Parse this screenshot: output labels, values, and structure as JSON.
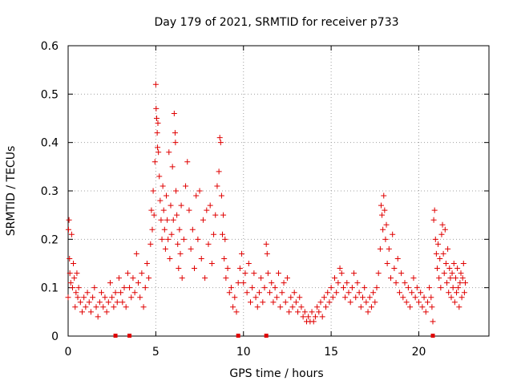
{
  "chart_data": {
    "type": "scatter",
    "title": "Day 179 of 2021, SRMTID for receiver p733",
    "xlabel": "GPS time / hours",
    "ylabel": "SRMTID / TECUs",
    "xlim": [
      0,
      24
    ],
    "ylim": [
      0,
      0.6
    ],
    "x_ticks": [
      0,
      5,
      10,
      15,
      20
    ],
    "y_ticks": [
      0,
      0.1,
      0.2,
      0.3,
      0.4,
      0.5,
      0.6
    ],
    "x_tick_labels": [
      "0",
      "5",
      "10",
      "15",
      "20"
    ],
    "y_tick_labels": [
      "0",
      "0.1",
      "0.2",
      "0.3",
      "0.4",
      "0.5",
      "0.6"
    ],
    "grid": true,
    "marker": "+",
    "color": "#e00000",
    "series": [
      {
        "name": "SRMTID",
        "points": [
          [
            0.0,
            0.08
          ],
          [
            0.02,
            0.22
          ],
          [
            0.05,
            0.24
          ],
          [
            0.08,
            0.16
          ],
          [
            0.1,
            0.13
          ],
          [
            0.15,
            0.11
          ],
          [
            0.2,
            0.21
          ],
          [
            0.25,
            0.1
          ],
          [
            0.3,
            0.15
          ],
          [
            0.35,
            0.12
          ],
          [
            0.4,
            0.06
          ],
          [
            0.45,
            0.09
          ],
          [
            0.5,
            0.13
          ],
          [
            0.55,
            0.08
          ],
          [
            0.6,
            0.1
          ],
          [
            0.7,
            0.07
          ],
          [
            0.8,
            0.05
          ],
          [
            0.9,
            0.08
          ],
          [
            1.0,
            0.06
          ],
          [
            1.1,
            0.09
          ],
          [
            1.2,
            0.07
          ],
          [
            1.3,
            0.05
          ],
          [
            1.4,
            0.08
          ],
          [
            1.5,
            0.1
          ],
          [
            1.6,
            0.06
          ],
          [
            1.7,
            0.04
          ],
          [
            1.8,
            0.07
          ],
          [
            1.9,
            0.09
          ],
          [
            2.0,
            0.06
          ],
          [
            2.1,
            0.08
          ],
          [
            2.2,
            0.05
          ],
          [
            2.3,
            0.07
          ],
          [
            2.4,
            0.11
          ],
          [
            2.5,
            0.08
          ],
          [
            2.6,
            0.06
          ],
          [
            2.7,
            0.09
          ],
          [
            2.8,
            0.07
          ],
          [
            2.9,
            0.12
          ],
          [
            3.0,
            0.09
          ],
          [
            3.1,
            0.07
          ],
          [
            3.2,
            0.1
          ],
          [
            3.3,
            0.06
          ],
          [
            3.4,
            0.13
          ],
          [
            3.5,
            0.1
          ],
          [
            3.6,
            0.08
          ],
          [
            3.7,
            0.12
          ],
          [
            3.8,
            0.09
          ],
          [
            3.9,
            0.17
          ],
          [
            4.0,
            0.11
          ],
          [
            4.1,
            0.08
          ],
          [
            4.2,
            0.13
          ],
          [
            4.3,
            0.06
          ],
          [
            4.4,
            0.1
          ],
          [
            4.5,
            0.15
          ],
          [
            4.6,
            0.12
          ],
          [
            4.7,
            0.19
          ],
          [
            4.75,
            0.26
          ],
          [
            4.8,
            0.22
          ],
          [
            4.85,
            0.3
          ],
          [
            4.9,
            0.25
          ],
          [
            4.95,
            0.36
          ],
          [
            5.0,
            0.52
          ],
          [
            5.02,
            0.47
          ],
          [
            5.05,
            0.45
          ],
          [
            5.08,
            0.42
          ],
          [
            5.1,
            0.39
          ],
          [
            5.12,
            0.44
          ],
          [
            5.15,
            0.38
          ],
          [
            5.2,
            0.33
          ],
          [
            5.25,
            0.28
          ],
          [
            5.3,
            0.24
          ],
          [
            5.35,
            0.2
          ],
          [
            5.4,
            0.31
          ],
          [
            5.45,
            0.26
          ],
          [
            5.5,
            0.22
          ],
          [
            5.55,
            0.18
          ],
          [
            5.6,
            0.29
          ],
          [
            5.65,
            0.24
          ],
          [
            5.7,
            0.2
          ],
          [
            5.75,
            0.38
          ],
          [
            5.8,
            0.16
          ],
          [
            5.85,
            0.27
          ],
          [
            5.9,
            0.21
          ],
          [
            5.95,
            0.35
          ],
          [
            6.0,
            0.24
          ],
          [
            6.05,
            0.46
          ],
          [
            6.1,
            0.42
          ],
          [
            6.12,
            0.4
          ],
          [
            6.15,
            0.3
          ],
          [
            6.2,
            0.25
          ],
          [
            6.25,
            0.19
          ],
          [
            6.3,
            0.14
          ],
          [
            6.35,
            0.22
          ],
          [
            6.4,
            0.17
          ],
          [
            6.45,
            0.27
          ],
          [
            6.5,
            0.12
          ],
          [
            6.6,
            0.2
          ],
          [
            6.7,
            0.31
          ],
          [
            6.8,
            0.36
          ],
          [
            6.9,
            0.26
          ],
          [
            7.0,
            0.18
          ],
          [
            7.1,
            0.22
          ],
          [
            7.2,
            0.14
          ],
          [
            7.3,
            0.29
          ],
          [
            7.4,
            0.2
          ],
          [
            7.5,
            0.3
          ],
          [
            7.6,
            0.16
          ],
          [
            7.7,
            0.24
          ],
          [
            7.8,
            0.12
          ],
          [
            7.9,
            0.26
          ],
          [
            8.0,
            0.19
          ],
          [
            8.1,
            0.27
          ],
          [
            8.2,
            0.15
          ],
          [
            8.3,
            0.21
          ],
          [
            8.4,
            0.25
          ],
          [
            8.5,
            0.31
          ],
          [
            8.6,
            0.34
          ],
          [
            8.65,
            0.41
          ],
          [
            8.7,
            0.4
          ],
          [
            8.75,
            0.29
          ],
          [
            8.8,
            0.21
          ],
          [
            8.85,
            0.25
          ],
          [
            8.9,
            0.16
          ],
          [
            8.95,
            0.2
          ],
          [
            9.0,
            0.12
          ],
          [
            9.1,
            0.14
          ],
          [
            9.2,
            0.09
          ],
          [
            9.3,
            0.1
          ],
          [
            9.4,
            0.06
          ],
          [
            9.5,
            0.08
          ],
          [
            9.6,
            0.05
          ],
          [
            9.7,
            0.11
          ],
          [
            9.8,
            0.14
          ],
          [
            9.9,
            0.17
          ],
          [
            10.0,
            0.11
          ],
          [
            10.1,
            0.13
          ],
          [
            10.2,
            0.09
          ],
          [
            10.3,
            0.15
          ],
          [
            10.4,
            0.07
          ],
          [
            10.5,
            0.1
          ],
          [
            10.6,
            0.13
          ],
          [
            10.7,
            0.08
          ],
          [
            10.8,
            0.06
          ],
          [
            10.9,
            0.09
          ],
          [
            11.0,
            0.12
          ],
          [
            11.1,
            0.07
          ],
          [
            11.2,
            0.1
          ],
          [
            11.3,
            0.19
          ],
          [
            11.35,
            0.17
          ],
          [
            11.4,
            0.13
          ],
          [
            11.5,
            0.09
          ],
          [
            11.6,
            0.11
          ],
          [
            11.7,
            0.07
          ],
          [
            11.8,
            0.1
          ],
          [
            11.9,
            0.08
          ],
          [
            12.0,
            0.13
          ],
          [
            12.1,
            0.06
          ],
          [
            12.2,
            0.09
          ],
          [
            12.3,
            0.11
          ],
          [
            12.4,
            0.07
          ],
          [
            12.5,
            0.12
          ],
          [
            12.6,
            0.05
          ],
          [
            12.7,
            0.08
          ],
          [
            12.8,
            0.06
          ],
          [
            12.9,
            0.09
          ],
          [
            13.0,
            0.07
          ],
          [
            13.1,
            0.05
          ],
          [
            13.2,
            0.08
          ],
          [
            13.3,
            0.06
          ],
          [
            13.4,
            0.04
          ],
          [
            13.5,
            0.05
          ],
          [
            13.6,
            0.03
          ],
          [
            13.7,
            0.04
          ],
          [
            13.8,
            0.03
          ],
          [
            13.9,
            0.05
          ],
          [
            14.0,
            0.03
          ],
          [
            14.1,
            0.04
          ],
          [
            14.2,
            0.06
          ],
          [
            14.3,
            0.05
          ],
          [
            14.4,
            0.07
          ],
          [
            14.5,
            0.04
          ],
          [
            14.6,
            0.08
          ],
          [
            14.7,
            0.06
          ],
          [
            14.8,
            0.09
          ],
          [
            14.9,
            0.07
          ],
          [
            15.0,
            0.1
          ],
          [
            15.1,
            0.08
          ],
          [
            15.2,
            0.12
          ],
          [
            15.3,
            0.09
          ],
          [
            15.4,
            0.11
          ],
          [
            15.5,
            0.14
          ],
          [
            15.6,
            0.13
          ],
          [
            15.7,
            0.1
          ],
          [
            15.8,
            0.08
          ],
          [
            15.9,
            0.11
          ],
          [
            16.0,
            0.09
          ],
          [
            16.1,
            0.07
          ],
          [
            16.2,
            0.1
          ],
          [
            16.3,
            0.13
          ],
          [
            16.4,
            0.08
          ],
          [
            16.5,
            0.11
          ],
          [
            16.6,
            0.09
          ],
          [
            16.7,
            0.06
          ],
          [
            16.8,
            0.08
          ],
          [
            16.9,
            0.1
          ],
          [
            17.0,
            0.07
          ],
          [
            17.1,
            0.05
          ],
          [
            17.2,
            0.08
          ],
          [
            17.3,
            0.06
          ],
          [
            17.4,
            0.09
          ],
          [
            17.5,
            0.07
          ],
          [
            17.6,
            0.1
          ],
          [
            17.7,
            0.13
          ],
          [
            17.8,
            0.18
          ],
          [
            17.85,
            0.27
          ],
          [
            17.9,
            0.25
          ],
          [
            17.95,
            0.22
          ],
          [
            18.0,
            0.29
          ],
          [
            18.05,
            0.26
          ],
          [
            18.1,
            0.2
          ],
          [
            18.15,
            0.23
          ],
          [
            18.2,
            0.15
          ],
          [
            18.3,
            0.18
          ],
          [
            18.4,
            0.12
          ],
          [
            18.5,
            0.21
          ],
          [
            18.6,
            0.14
          ],
          [
            18.7,
            0.11
          ],
          [
            18.8,
            0.16
          ],
          [
            18.9,
            0.09
          ],
          [
            19.0,
            0.13
          ],
          [
            19.1,
            0.08
          ],
          [
            19.2,
            0.11
          ],
          [
            19.3,
            0.07
          ],
          [
            19.4,
            0.1
          ],
          [
            19.5,
            0.06
          ],
          [
            19.6,
            0.09
          ],
          [
            19.7,
            0.12
          ],
          [
            19.8,
            0.08
          ],
          [
            19.9,
            0.1
          ],
          [
            20.0,
            0.07
          ],
          [
            20.1,
            0.09
          ],
          [
            20.2,
            0.06
          ],
          [
            20.3,
            0.08
          ],
          [
            20.4,
            0.05
          ],
          [
            20.5,
            0.07
          ],
          [
            20.6,
            0.1
          ],
          [
            20.7,
            0.08
          ],
          [
            20.75,
            0.06
          ],
          [
            20.8,
            0.03
          ],
          [
            20.85,
            0.24
          ],
          [
            20.9,
            0.26
          ],
          [
            20.95,
            0.2
          ],
          [
            21.0,
            0.17
          ],
          [
            21.05,
            0.14
          ],
          [
            21.1,
            0.19
          ],
          [
            21.15,
            0.12
          ],
          [
            21.2,
            0.16
          ],
          [
            21.25,
            0.1
          ],
          [
            21.3,
            0.21
          ],
          [
            21.35,
            0.23
          ],
          [
            21.4,
            0.17
          ],
          [
            21.45,
            0.13
          ],
          [
            21.5,
            0.22
          ],
          [
            21.55,
            0.15
          ],
          [
            21.6,
            0.11
          ],
          [
            21.65,
            0.18
          ],
          [
            21.7,
            0.09
          ],
          [
            21.75,
            0.14
          ],
          [
            21.8,
            0.12
          ],
          [
            21.85,
            0.08
          ],
          [
            21.9,
            0.13
          ],
          [
            21.95,
            0.1
          ],
          [
            22.0,
            0.15
          ],
          [
            22.05,
            0.07
          ],
          [
            22.1,
            0.12
          ],
          [
            22.15,
            0.09
          ],
          [
            22.2,
            0.14
          ],
          [
            22.25,
            0.1
          ],
          [
            22.3,
            0.06
          ],
          [
            22.35,
            0.11
          ],
          [
            22.4,
            0.13
          ],
          [
            22.45,
            0.08
          ],
          [
            22.5,
            0.12
          ],
          [
            22.55,
            0.15
          ],
          [
            22.6,
            0.09
          ],
          [
            22.65,
            0.11
          ]
        ]
      }
    ],
    "gap_markers_x": [
      2.7,
      3.5,
      9.7,
      11.3,
      20.8
    ]
  }
}
